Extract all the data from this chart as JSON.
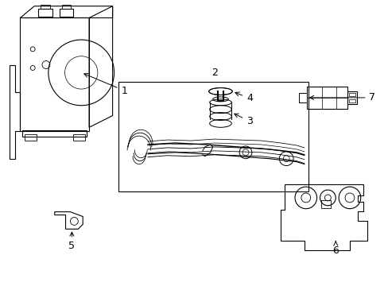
{
  "background_color": "#ffffff",
  "line_color": "#000000",
  "text_color": "#000000",
  "figsize": [
    4.89,
    3.6
  ],
  "dpi": 100,
  "font_size": 9
}
